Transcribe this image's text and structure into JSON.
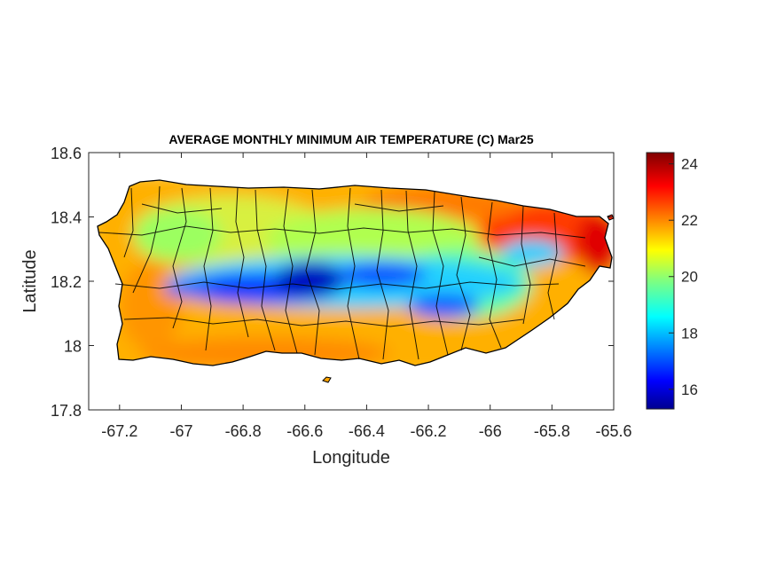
{
  "chart_data": {
    "type": "heatmap",
    "title": "AVERAGE MONTHLY MINIMUM AIR TEMPERATURE (C) Mar25",
    "xlabel": "Longitude",
    "ylabel": "Latitude",
    "xlim": [
      -67.3,
      -65.6
    ],
    "ylim": [
      17.8,
      18.6
    ],
    "x_ticks": [
      "-67.2",
      "-67",
      "-66.8",
      "-66.6",
      "-66.4",
      "-66.2",
      "-66",
      "-65.8",
      "-65.6"
    ],
    "y_ticks": [
      "18.6",
      "18.4",
      "18.2",
      "18",
      "17.8"
    ],
    "colorbar": {
      "colormap": "jet",
      "range": [
        15.3,
        24.4
      ],
      "ticks": [
        "24",
        "22",
        "20",
        "18",
        "16"
      ]
    },
    "grid": false,
    "region": "Puerto Rico",
    "pattern": {
      "coolest": "central mountain range, approx. 15.5–17 C",
      "warmest": "northeast coast, approx. 23–24 C",
      "coasts": "south and west coasts approx. 21–22.5 C"
    }
  }
}
